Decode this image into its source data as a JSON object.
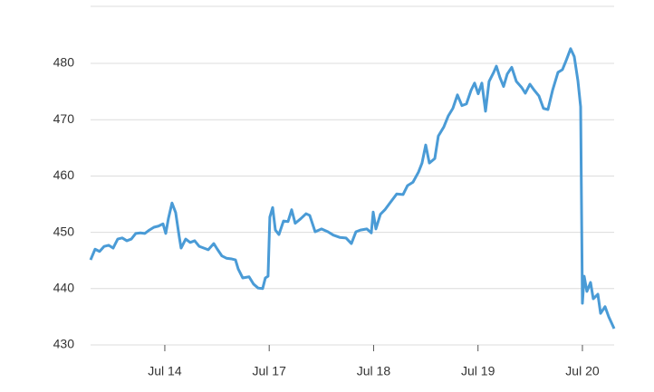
{
  "chart_data": {
    "type": "line",
    "x": [
      -0.711,
      -0.668,
      -0.625,
      -0.581,
      -0.538,
      -0.495,
      -0.451,
      -0.408,
      -0.364,
      -0.321,
      -0.278,
      -0.234,
      -0.191,
      -0.148,
      -0.104,
      -0.061,
      -0.017,
      0.009,
      0.035,
      0.069,
      0.104,
      0.139,
      0.156,
      0.2,
      0.243,
      0.286,
      0.33,
      0.416,
      0.469,
      0.503,
      0.547,
      0.59,
      0.633,
      0.677,
      0.703,
      0.746,
      0.807,
      0.85,
      0.894,
      0.937,
      0.963,
      0.989,
      1.006,
      1.033,
      1.059,
      1.093,
      1.137,
      1.18,
      1.215,
      1.249,
      1.301,
      1.353,
      1.388,
      1.44,
      1.501,
      1.562,
      1.614,
      1.675,
      1.735,
      1.787,
      1.831,
      1.874,
      1.935,
      1.978,
      1.996,
      2.022,
      2.065,
      2.108,
      2.152,
      2.221,
      2.282,
      2.325,
      2.377,
      2.43,
      2.464,
      2.499,
      2.534,
      2.586,
      2.62,
      2.672,
      2.716,
      2.759,
      2.803,
      2.846,
      2.889,
      2.933,
      2.967,
      3.002,
      3.037,
      3.072,
      3.106,
      3.15,
      3.176,
      3.21,
      3.245,
      3.28,
      3.323,
      3.367,
      3.419,
      3.453,
      3.497,
      3.54,
      3.584,
      3.627,
      3.67,
      3.714,
      3.766,
      3.809,
      3.844,
      3.887,
      3.922,
      3.957,
      3.983,
      4.0,
      4.017,
      4.043,
      4.078,
      4.104,
      4.148,
      4.174,
      4.217,
      4.252,
      4.304
    ],
    "series": [
      {
        "color": "#4a9bd6",
        "values": [
          445.1,
          447.0,
          446.6,
          447.5,
          447.7,
          447.2,
          448.8,
          449.0,
          448.5,
          448.8,
          449.8,
          449.9,
          449.8,
          450.4,
          450.9,
          451.1,
          451.5,
          449.8,
          452.5,
          455.2,
          453.5,
          449.1,
          447.2,
          448.8,
          448.2,
          448.5,
          447.5,
          446.9,
          448.0,
          447.0,
          445.8,
          445.4,
          445.3,
          445.1,
          443.5,
          441.9,
          442.1,
          440.8,
          440.1,
          440.0,
          441.9,
          442.2,
          452.7,
          454.4,
          450.4,
          449.6,
          452.0,
          451.9,
          454.0,
          451.6,
          452.4,
          453.3,
          453.0,
          450.1,
          450.6,
          450.1,
          449.5,
          449.1,
          449.0,
          448.0,
          450.1,
          450.4,
          450.6,
          449.9,
          453.6,
          450.6,
          453.2,
          454.0,
          455.1,
          456.8,
          456.7,
          458.3,
          458.9,
          460.7,
          462.3,
          465.5,
          462.3,
          463.1,
          467.1,
          468.7,
          470.7,
          472.0,
          474.4,
          472.5,
          472.8,
          475.2,
          476.5,
          474.6,
          476.5,
          471.5,
          476.8,
          478.4,
          479.5,
          477.5,
          475.9,
          478.1,
          479.3,
          476.8,
          475.7,
          474.7,
          476.3,
          475.2,
          474.2,
          472.0,
          471.8,
          475.2,
          478.4,
          478.9,
          480.5,
          482.6,
          481.2,
          476.9,
          472.3,
          437.4,
          442.2,
          439.5,
          441.1,
          438.2,
          439.0,
          435.6,
          436.8,
          435.0,
          432.9
        ]
      }
    ],
    "xlim": [
      -0.711,
      4.304
    ],
    "xticks": [
      {
        "value": 0,
        "label": "Jul 14"
      },
      {
        "value": 1,
        "label": "Jul 17"
      },
      {
        "value": 2,
        "label": "Jul 18"
      },
      {
        "value": 3,
        "label": "Jul 19"
      },
      {
        "value": 4,
        "label": "Jul 20"
      }
    ],
    "ylim": [
      430,
      490
    ],
    "yticks": [
      430,
      440,
      450,
      460,
      470,
      480
    ],
    "grid": true
  }
}
